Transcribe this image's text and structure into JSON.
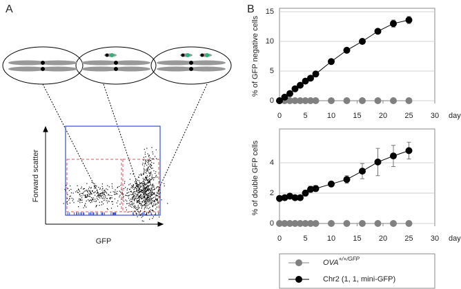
{
  "panels": {
    "a_label": "A",
    "b_label": "B"
  },
  "panel_a": {
    "y_axis_label": "Forward scatter",
    "x_axis_label": "GFP"
  },
  "chart_data": [
    {
      "type": "line",
      "y_axis_label": "% of GFP negative cells",
      "x_unit": "day",
      "xlim": [
        0,
        30
      ],
      "xticks": [
        0,
        5,
        10,
        15,
        20,
        25,
        30
      ],
      "ylim": [
        0,
        15
      ],
      "yticks": [
        0,
        5,
        10,
        15
      ],
      "grid": true,
      "series": [
        {
          "name": "OVA",
          "name_superscript": "+/+/GFP",
          "color": "#808080",
          "x": [
            0,
            1,
            2,
            3,
            4,
            5,
            6,
            7,
            10,
            13,
            16,
            19,
            22,
            25
          ],
          "values": [
            0,
            0,
            0,
            0,
            0,
            0,
            0,
            0,
            0,
            0,
            0,
            0,
            0,
            0
          ]
        },
        {
          "name": "Chr2 (1, 1, mini-GFP)",
          "color": "#000000",
          "x": [
            0,
            1,
            2,
            3,
            4,
            5,
            6,
            7,
            10,
            13,
            16,
            19,
            22,
            25
          ],
          "values": [
            0,
            0.6,
            1.2,
            2,
            2.6,
            3.3,
            3.8,
            4.5,
            6.6,
            8.5,
            10,
            11.7,
            13,
            13.6
          ],
          "errors": [
            0,
            0.1,
            0.1,
            0.1,
            0.1,
            0.1,
            0.1,
            0.1,
            0.2,
            0.4,
            0.3,
            0.3,
            0.6,
            0.6
          ]
        }
      ]
    },
    {
      "type": "line",
      "y_axis_label": "% of double GFP cells",
      "x_unit": "day",
      "xlim": [
        0,
        30
      ],
      "xticks": [
        0,
        5,
        10,
        15,
        20,
        25,
        30
      ],
      "ylim": [
        0,
        6
      ],
      "yticks": [
        0,
        2,
        4
      ],
      "grid": true,
      "series": [
        {
          "name": "OVA",
          "name_superscript": "+/+/GFP",
          "color": "#808080",
          "x": [
            0,
            1,
            2,
            3,
            4,
            5,
            6,
            7,
            10,
            13,
            16,
            19,
            22,
            25
          ],
          "values": [
            0,
            0,
            0,
            0,
            0,
            0,
            0,
            0,
            0,
            0,
            0,
            0,
            0,
            0
          ]
        },
        {
          "name": "Chr2 (1, 1, mini-GFP)",
          "color": "#000000",
          "x": [
            0,
            1,
            2,
            3,
            4,
            5,
            6,
            7,
            10,
            13,
            16,
            19,
            22,
            25
          ],
          "values": [
            1.65,
            1.7,
            1.8,
            1.7,
            1.7,
            2,
            2.25,
            2.3,
            2.6,
            2.9,
            3.45,
            4.05,
            4.45,
            4.8
          ],
          "errors": [
            0,
            0,
            0.05,
            0,
            0,
            0.2,
            0.2,
            0.2,
            0.1,
            0.25,
            0.5,
            0.9,
            0.7,
            0.55
          ]
        }
      ]
    }
  ]
}
